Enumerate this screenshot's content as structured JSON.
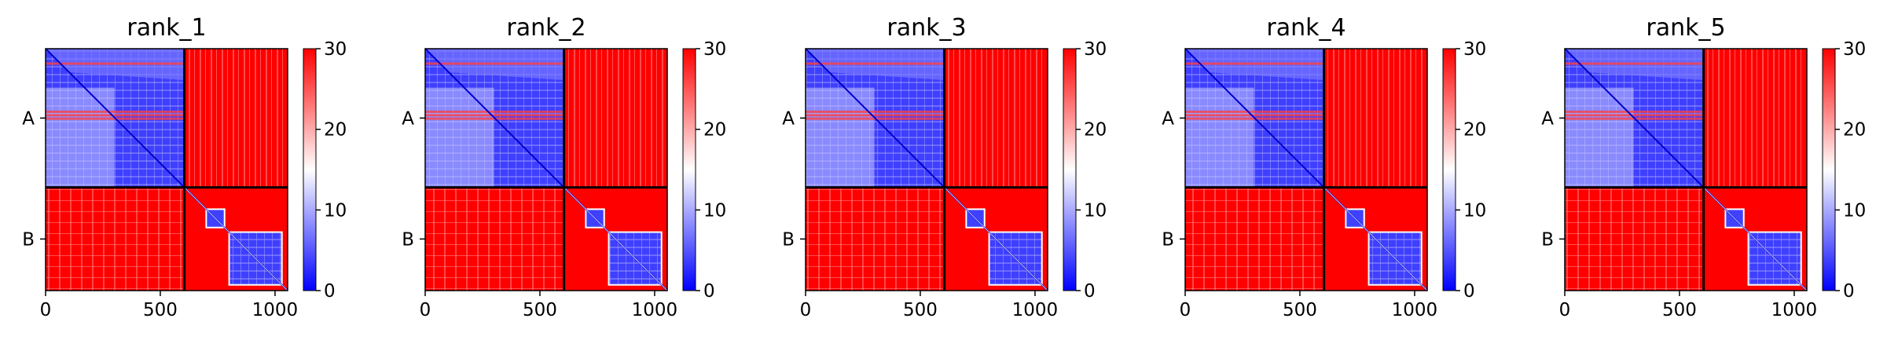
{
  "chart_data": [
    {
      "type": "heatmap",
      "title": "rank_1",
      "x_ticks": [
        0,
        500,
        1000
      ],
      "xlim": [
        0,
        1055
      ],
      "chain_labels": [
        "A",
        "B"
      ],
      "chain_boundary": 605,
      "colorbar": {
        "min": 0,
        "max": 30,
        "ticks": [
          0,
          10,
          20,
          30
        ],
        "colors": [
          "#0000ff",
          "#ffffff",
          "#ff0000"
        ]
      }
    },
    {
      "type": "heatmap",
      "title": "rank_2",
      "x_ticks": [
        0,
        500,
        1000
      ],
      "xlim": [
        0,
        1055
      ],
      "chain_labels": [
        "A",
        "B"
      ],
      "chain_boundary": 605,
      "colorbar": {
        "min": 0,
        "max": 30,
        "ticks": [
          0,
          10,
          20,
          30
        ],
        "colors": [
          "#0000ff",
          "#ffffff",
          "#ff0000"
        ]
      }
    },
    {
      "type": "heatmap",
      "title": "rank_3",
      "x_ticks": [
        0,
        500,
        1000
      ],
      "xlim": [
        0,
        1055
      ],
      "chain_labels": [
        "A",
        "B"
      ],
      "chain_boundary": 605,
      "colorbar": {
        "min": 0,
        "max": 30,
        "ticks": [
          0,
          10,
          20,
          30
        ],
        "colors": [
          "#0000ff",
          "#ffffff",
          "#ff0000"
        ]
      }
    },
    {
      "type": "heatmap",
      "title": "rank_4",
      "x_ticks": [
        0,
        500,
        1000
      ],
      "xlim": [
        0,
        1055
      ],
      "chain_labels": [
        "A",
        "B"
      ],
      "chain_boundary": 605,
      "colorbar": {
        "min": 0,
        "max": 30,
        "ticks": [
          0,
          10,
          20,
          30
        ],
        "colors": [
          "#0000ff",
          "#ffffff",
          "#ff0000"
        ]
      }
    },
    {
      "type": "heatmap",
      "title": "rank_5",
      "x_ticks": [
        0,
        500,
        1000
      ],
      "xlim": [
        0,
        1055
      ],
      "chain_labels": [
        "A",
        "B"
      ],
      "chain_boundary": 605,
      "colorbar": {
        "min": 0,
        "max": 30,
        "ticks": [
          0,
          10,
          20,
          30
        ],
        "colors": [
          "#0000ff",
          "#ffffff",
          "#ff0000"
        ]
      }
    }
  ]
}
